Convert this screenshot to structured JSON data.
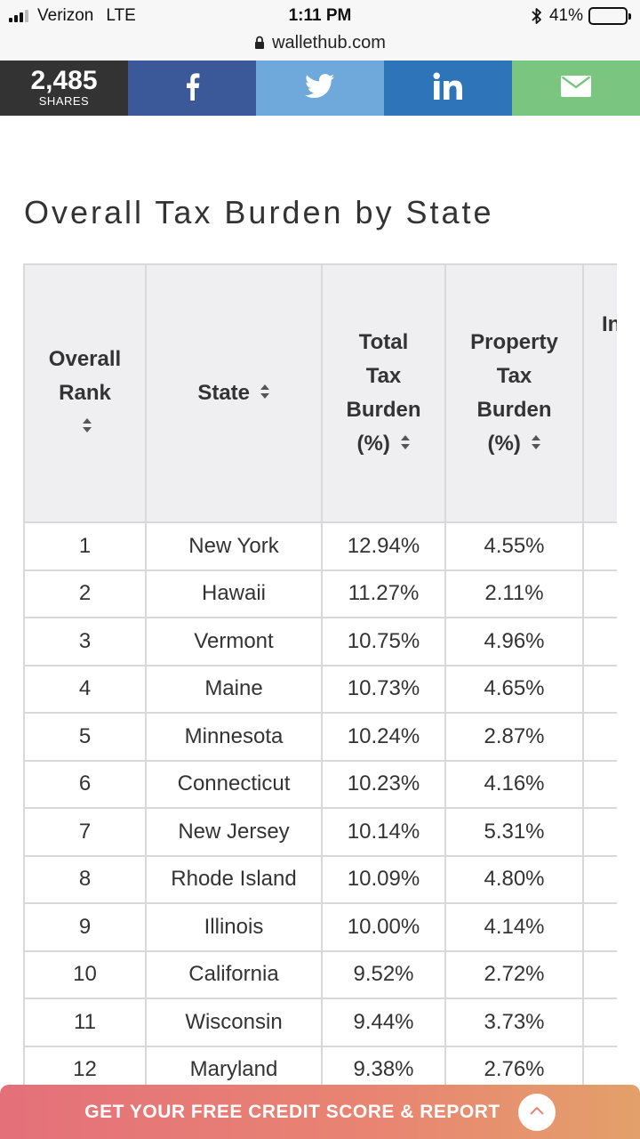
{
  "status_bar": {
    "carrier": "Verizon",
    "network": "LTE",
    "time": "1:11 PM",
    "battery_percent": "41%",
    "battery_level": 0.41,
    "url": "wallethub.com"
  },
  "share_bar": {
    "count": "2,485",
    "count_label": "SHARES",
    "buttons": [
      "facebook-icon",
      "twitter-icon",
      "linkedin-icon",
      "email-icon"
    ],
    "colors": {
      "facebook": "#3b5998",
      "twitter": "#6fa9db",
      "linkedin": "#2e74b8",
      "email": "#7ac57f",
      "count_bg": "#333333"
    }
  },
  "page_title": "Overall Tax Burden by State",
  "table": {
    "headers": {
      "rank": "Overall Rank",
      "state": "State",
      "total": "Total Tax Burden (%)",
      "property": "Property Tax Burden (%)",
      "next_partial": "In"
    },
    "rows": [
      {
        "rank": "1",
        "state": "New York",
        "total": "12.94%",
        "property": "4.55%"
      },
      {
        "rank": "2",
        "state": "Hawaii",
        "total": "11.27%",
        "property": "2.11%"
      },
      {
        "rank": "3",
        "state": "Vermont",
        "total": "10.75%",
        "property": "4.96%"
      },
      {
        "rank": "4",
        "state": "Maine",
        "total": "10.73%",
        "property": "4.65%"
      },
      {
        "rank": "5",
        "state": "Minnesota",
        "total": "10.24%",
        "property": "2.87%"
      },
      {
        "rank": "6",
        "state": "Connecticut",
        "total": "10.23%",
        "property": "4.16%"
      },
      {
        "rank": "7",
        "state": "New Jersey",
        "total": "10.14%",
        "property": "5.31%"
      },
      {
        "rank": "8",
        "state": "Rhode Island",
        "total": "10.09%",
        "property": "4.80%"
      },
      {
        "rank": "9",
        "state": "Illinois",
        "total": "10.00%",
        "property": "4.14%"
      },
      {
        "rank": "10",
        "state": "California",
        "total": "9.52%",
        "property": "2.72%"
      },
      {
        "rank": "11",
        "state": "Wisconsin",
        "total": "9.44%",
        "property": "3.73%"
      },
      {
        "rank": "12",
        "state": "Maryland",
        "total": "9.38%",
        "property": "2.76%"
      }
    ]
  },
  "banner": {
    "text": "GET YOUR FREE CREDIT SCORE & REPORT",
    "colors": {
      "start": "#e4707a",
      "end": "#e3a06a"
    }
  }
}
